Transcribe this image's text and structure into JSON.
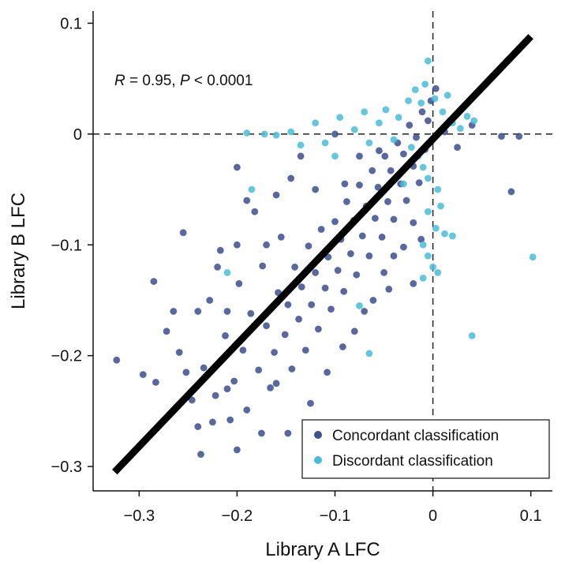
{
  "chart_data": {
    "type": "scatter",
    "title": "",
    "xlabel": "Library A LFC",
    "ylabel": "Library B LFC",
    "xlim": [
      -0.347,
      0.122
    ],
    "ylim": [
      -0.322,
      0.111
    ],
    "x_ticks": [
      -0.3,
      -0.2,
      -0.1,
      0,
      0.1
    ],
    "x_tick_labels": [
      "−0.3",
      "−0.2",
      "−0.1",
      "0",
      "0.1"
    ],
    "y_ticks": [
      -0.3,
      -0.2,
      -0.1,
      0,
      0.1
    ],
    "y_tick_labels": [
      "−0.3",
      "−0.2",
      "−0.1",
      "0",
      "0.1"
    ],
    "grid": false,
    "reference_lines": {
      "x": 0,
      "y": 0,
      "style": "dashed"
    },
    "annotation": {
      "R_symbol": "R",
      "R_text": " = 0.95, ",
      "P_symbol": "P",
      "P_text": " < 0.0001"
    },
    "fit_line": {
      "x": [
        -0.325,
        0.1
      ],
      "y": [
        -0.305,
        0.088
      ],
      "color": "#000000"
    },
    "legend": {
      "placement": "bottom-right",
      "entries": [
        {
          "label": "Concordant classification",
          "color": "#3d4f8c"
        },
        {
          "label": "Discordant classification",
          "color": "#4bbcd6"
        }
      ]
    },
    "series": [
      {
        "name": "Concordant classification",
        "color": "#3d4f8c",
        "points": [
          [
            -0.323,
            -0.204
          ],
          [
            -0.296,
            -0.217
          ],
          [
            -0.285,
            -0.133
          ],
          [
            -0.283,
            -0.224
          ],
          [
            -0.272,
            -0.178
          ],
          [
            -0.259,
            -0.197
          ],
          [
            -0.255,
            -0.089
          ],
          [
            -0.252,
            -0.215
          ],
          [
            -0.246,
            -0.24
          ],
          [
            -0.24,
            -0.264
          ],
          [
            -0.237,
            -0.289
          ],
          [
            -0.234,
            -0.211
          ],
          [
            -0.228,
            -0.15
          ],
          [
            -0.222,
            -0.236
          ],
          [
            -0.217,
            -0.105
          ],
          [
            -0.212,
            -0.182
          ],
          [
            -0.207,
            -0.258
          ],
          [
            -0.203,
            -0.223
          ],
          [
            -0.198,
            -0.135
          ],
          [
            -0.194,
            -0.195
          ],
          [
            -0.19,
            -0.249
          ],
          [
            -0.186,
            -0.162
          ],
          [
            -0.182,
            -0.07
          ],
          [
            -0.178,
            -0.213
          ],
          [
            -0.174,
            -0.119
          ],
          [
            -0.17,
            -0.173
          ],
          [
            -0.166,
            -0.229
          ],
          [
            -0.162,
            -0.197
          ],
          [
            -0.158,
            -0.143
          ],
          [
            -0.155,
            -0.093
          ],
          [
            -0.151,
            -0.181
          ],
          [
            -0.148,
            -0.154
          ],
          [
            -0.144,
            -0.212
          ],
          [
            -0.141,
            -0.12
          ],
          [
            -0.137,
            -0.167
          ],
          [
            -0.134,
            -0.138
          ],
          [
            -0.13,
            -0.195
          ],
          [
            -0.127,
            -0.101
          ],
          [
            -0.124,
            -0.154
          ],
          [
            -0.12,
            -0.125
          ],
          [
            -0.117,
            -0.176
          ],
          [
            -0.114,
            -0.086
          ],
          [
            -0.11,
            -0.139
          ],
          [
            -0.107,
            -0.111
          ],
          [
            -0.104,
            -0.158
          ],
          [
            -0.1,
            -0.079
          ],
          [
            -0.097,
            -0.123
          ],
          [
            -0.094,
            -0.095
          ],
          [
            -0.091,
            -0.142
          ],
          [
            -0.088,
            -0.061
          ],
          [
            -0.084,
            -0.108
          ],
          [
            -0.081,
            -0.078
          ],
          [
            -0.078,
            -0.127
          ],
          [
            -0.075,
            -0.046
          ],
          [
            -0.072,
            -0.092
          ],
          [
            -0.068,
            -0.065
          ],
          [
            -0.065,
            -0.11
          ],
          [
            -0.062,
            -0.033
          ],
          [
            -0.059,
            -0.076
          ],
          [
            -0.056,
            -0.048
          ],
          [
            -0.052,
            -0.093
          ],
          [
            -0.049,
            -0.02
          ],
          [
            -0.046,
            -0.061
          ],
          [
            -0.043,
            -0.033
          ],
          [
            -0.04,
            -0.077
          ],
          [
            -0.036,
            -0.008
          ],
          [
            -0.033,
            -0.045
          ],
          [
            -0.03,
            -0.018
          ],
          [
            -0.027,
            -0.06
          ],
          [
            -0.024,
            0.008
          ],
          [
            -0.02,
            -0.029
          ],
          [
            -0.017,
            -0.003
          ],
          [
            -0.014,
            -0.044
          ],
          [
            -0.011,
            0.02
          ],
          [
            -0.008,
            -0.014
          ],
          [
            -0.005,
            0.012
          ],
          [
            -0.002,
            0.03
          ],
          [
            0.003,
            0.041
          ],
          [
            0.012,
            0.002
          ],
          [
            0.025,
            -0.012
          ],
          [
            0.04,
            0.008
          ],
          [
            0.07,
            -0.002
          ],
          [
            0.08,
            -0.052
          ],
          [
            0.088,
            -0.002
          ],
          [
            -0.03,
            -0.102
          ],
          [
            -0.012,
            -0.095
          ],
          [
            -0.061,
            -0.15
          ],
          [
            -0.045,
            -0.14
          ],
          [
            -0.092,
            -0.192
          ],
          [
            -0.08,
            -0.178
          ],
          [
            -0.108,
            -0.215
          ],
          [
            -0.125,
            -0.243
          ],
          [
            -0.148,
            -0.27
          ],
          [
            -0.16,
            -0.225
          ],
          [
            -0.175,
            -0.27
          ],
          [
            -0.2,
            -0.285
          ],
          [
            -0.21,
            -0.23
          ],
          [
            -0.225,
            -0.26
          ],
          [
            -0.16,
            -0.055
          ],
          [
            -0.2,
            -0.03
          ],
          [
            -0.19,
            -0.06
          ],
          [
            -0.145,
            -0.04
          ],
          [
            -0.12,
            -0.05
          ],
          [
            -0.135,
            -0.02
          ],
          [
            -0.1,
            0.0
          ],
          [
            -0.2,
            -0.1
          ],
          [
            -0.22,
            -0.12
          ],
          [
            -0.24,
            -0.16
          ],
          [
            -0.265,
            -0.16
          ],
          [
            -0.21,
            -0.16
          ],
          [
            -0.17,
            -0.1
          ],
          [
            -0.055,
            -0.015
          ],
          [
            -0.075,
            -0.02
          ],
          [
            -0.09,
            -0.045
          ],
          [
            -0.04,
            -0.11
          ],
          [
            -0.02,
            -0.08
          ],
          [
            -0.07,
            -0.16
          ],
          [
            -0.05,
            -0.125
          ],
          [
            -0.02,
            -0.135
          ]
        ]
      },
      {
        "name": "Discordant classification",
        "color": "#4bbcd6",
        "points": [
          [
            -0.19,
            0.001
          ],
          [
            -0.172,
            0.0
          ],
          [
            -0.16,
            -0.001
          ],
          [
            -0.145,
            0.002
          ],
          [
            -0.135,
            -0.01
          ],
          [
            -0.12,
            0.01
          ],
          [
            -0.11,
            -0.008
          ],
          [
            -0.095,
            0.015
          ],
          [
            -0.08,
            0.004
          ],
          [
            -0.07,
            0.02
          ],
          [
            -0.065,
            -0.008
          ],
          [
            -0.055,
            0.01
          ],
          [
            -0.048,
            0.022
          ],
          [
            -0.04,
            -0.005
          ],
          [
            -0.035,
            0.015
          ],
          [
            -0.025,
            0.03
          ],
          [
            -0.018,
            0.04
          ],
          [
            -0.012,
            0.028
          ],
          [
            -0.008,
            0.045
          ],
          [
            -0.005,
            0.066
          ],
          [
            0.002,
            0.032
          ],
          [
            0.01,
            0.02
          ],
          [
            0.015,
            0.035
          ],
          [
            0.02,
            0.01
          ],
          [
            0.028,
            0.005
          ],
          [
            0.035,
            0.016
          ],
          [
            0.042,
            0.012
          ],
          [
            -0.022,
            -0.012
          ],
          [
            -0.015,
            -0.02
          ],
          [
            -0.01,
            -0.03
          ],
          [
            -0.005,
            -0.04
          ],
          [
            0.005,
            -0.05
          ],
          [
            0.008,
            -0.065
          ],
          [
            -0.005,
            -0.07
          ],
          [
            0.003,
            -0.085
          ],
          [
            0.012,
            -0.09
          ],
          [
            0.02,
            -0.092
          ],
          [
            -0.01,
            -0.1
          ],
          [
            -0.005,
            -0.11
          ],
          [
            0.0,
            -0.12
          ],
          [
            -0.01,
            -0.13
          ],
          [
            0.005,
            -0.125
          ],
          [
            -0.03,
            -0.045
          ],
          [
            -0.185,
            -0.05
          ],
          [
            -0.21,
            -0.125
          ],
          [
            -0.075,
            -0.155
          ],
          [
            -0.065,
            -0.198
          ],
          [
            0.04,
            -0.182
          ],
          [
            0.102,
            -0.111
          ],
          [
            -0.1,
            -0.02
          ]
        ]
      }
    ]
  }
}
